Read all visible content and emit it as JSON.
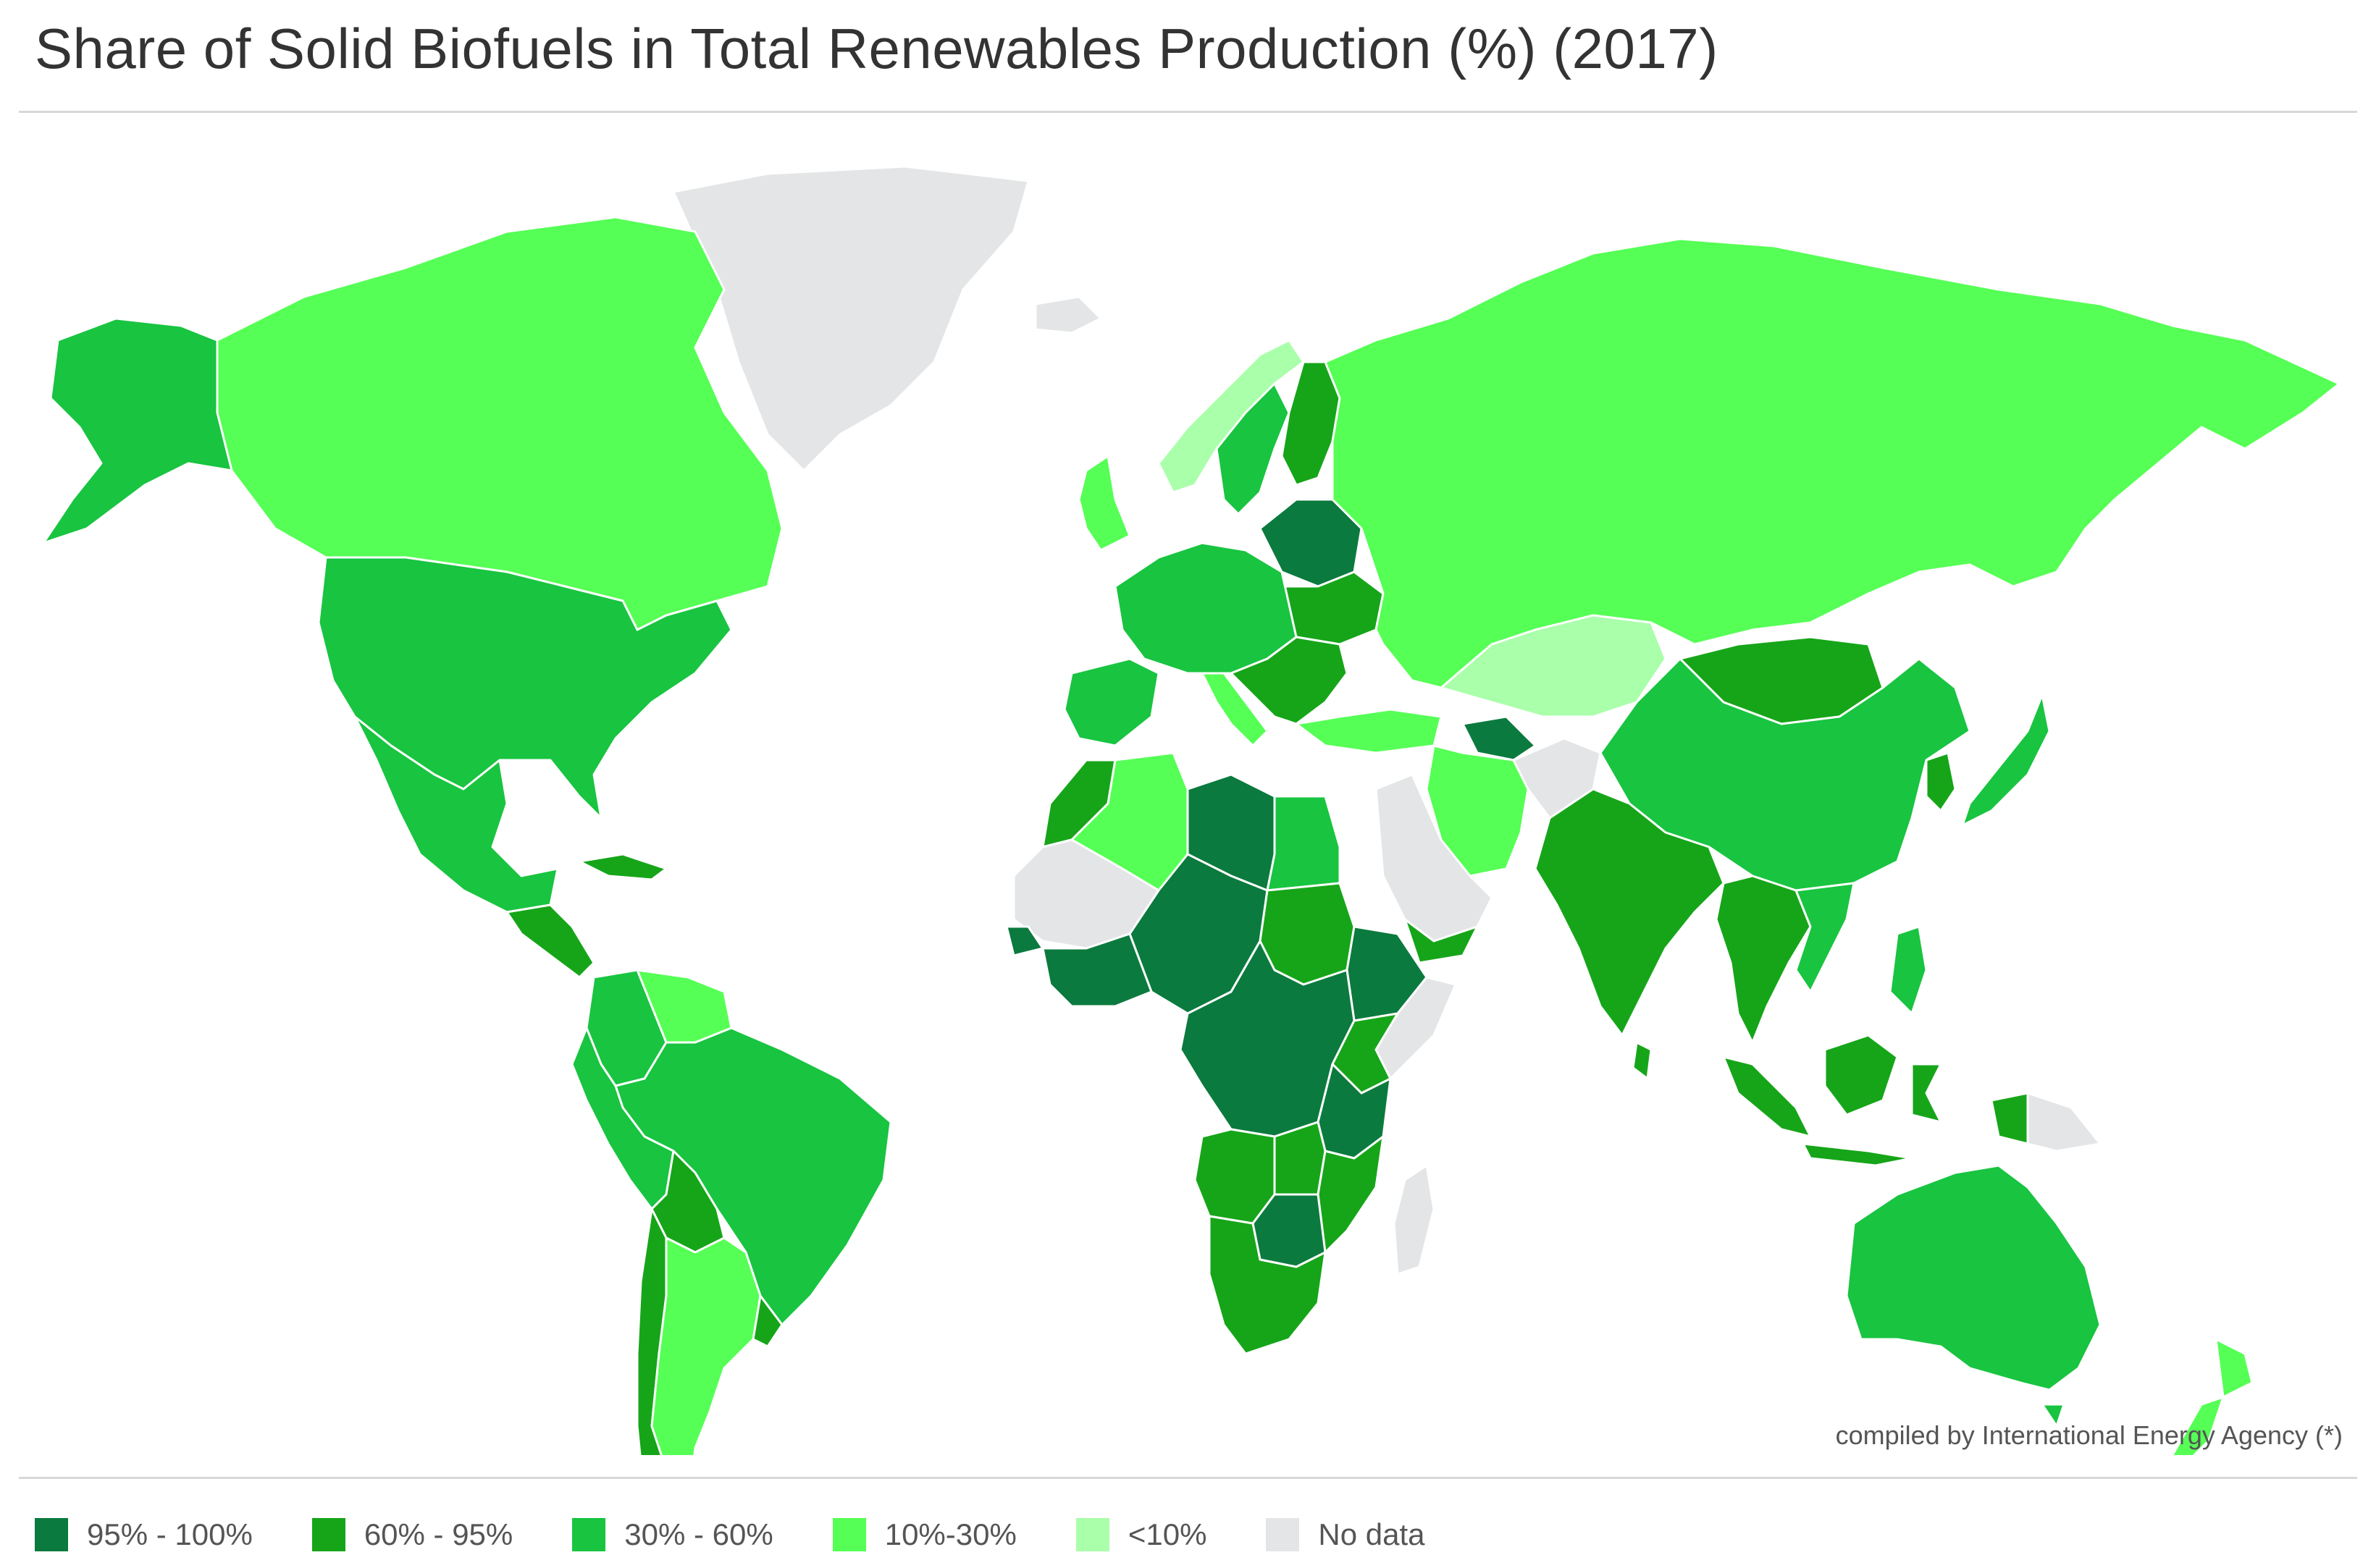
{
  "title": "Share of Solid Biofuels in Total Renewables Production (%) (2017)",
  "credit": "compiled by International Energy Agency (*)",
  "legend": [
    {
      "label": "95% - 100%",
      "color": "#0b7a3e"
    },
    {
      "label": "60% - 95%",
      "color": "#16a519"
    },
    {
      "label": "30% - 60%",
      "color": "#18c440"
    },
    {
      "label": "10%-30%",
      "color": "#55ff55"
    },
    {
      "label": "<10%",
      "color": "#aaffaa"
    },
    {
      "label": "No data",
      "color": "#e3e5e6"
    }
  ],
  "regions": [
    {
      "id": "greenland",
      "cls": "No data",
      "color": "#e3e5e6"
    },
    {
      "id": "canada",
      "cls": "10%-30%",
      "color": "#55ff55"
    },
    {
      "id": "alaska",
      "cls": "30% - 60%",
      "color": "#18c440"
    },
    {
      "id": "usa",
      "cls": "30% - 60%",
      "color": "#18c440"
    },
    {
      "id": "mexico",
      "cls": "30% - 60%",
      "color": "#18c440"
    },
    {
      "id": "central-america",
      "cls": "60% - 95%",
      "color": "#16a519"
    },
    {
      "id": "cuba",
      "cls": "60% - 95%",
      "color": "#16a519"
    },
    {
      "id": "colombia",
      "cls": "30% - 60%",
      "color": "#18c440"
    },
    {
      "id": "venezuela",
      "cls": "10%-30%",
      "color": "#55ff55"
    },
    {
      "id": "brazil",
      "cls": "30% - 60%",
      "color": "#18c440"
    },
    {
      "id": "peru",
      "cls": "30% - 60%",
      "color": "#18c440"
    },
    {
      "id": "bolivia",
      "cls": "60% - 95%",
      "color": "#16a519"
    },
    {
      "id": "chile",
      "cls": "60% - 95%",
      "color": "#16a519"
    },
    {
      "id": "argentina",
      "cls": "10%-30%",
      "color": "#55ff55"
    },
    {
      "id": "uruguay",
      "cls": "60% - 95%",
      "color": "#16a519"
    },
    {
      "id": "iceland",
      "cls": "No data",
      "color": "#e3e5e6"
    },
    {
      "id": "uk",
      "cls": "10%-30%",
      "color": "#55ff55"
    },
    {
      "id": "norway",
      "cls": "<10%",
      "color": "#aaffaa"
    },
    {
      "id": "sweden",
      "cls": "30% - 60%",
      "color": "#18c440"
    },
    {
      "id": "finland",
      "cls": "60% - 95%",
      "color": "#16a519"
    },
    {
      "id": "baltics-belarus",
      "cls": "95% - 100%",
      "color": "#0b7a3e"
    },
    {
      "id": "ukraine",
      "cls": "60% - 95%",
      "color": "#16a519"
    },
    {
      "id": "western-europe",
      "cls": "30% - 60%",
      "color": "#18c440"
    },
    {
      "id": "iberia",
      "cls": "30% - 60%",
      "color": "#18c440"
    },
    {
      "id": "italy",
      "cls": "10%-30%",
      "color": "#55ff55"
    },
    {
      "id": "balkans",
      "cls": "60% - 95%",
      "color": "#16a519"
    },
    {
      "id": "turkey",
      "cls": "10%-30%",
      "color": "#55ff55"
    },
    {
      "id": "russia",
      "cls": "10%-30%",
      "color": "#55ff55"
    },
    {
      "id": "kazakhstan",
      "cls": "<10%",
      "color": "#aaffaa"
    },
    {
      "id": "turkmenistan",
      "cls": "95% - 100%",
      "color": "#0b7a3e"
    },
    {
      "id": "iran",
      "cls": "10%-30%",
      "color": "#55ff55"
    },
    {
      "id": "afghanistan",
      "cls": "No data",
      "color": "#e3e5e6"
    },
    {
      "id": "mongolia",
      "cls": "60% - 95%",
      "color": "#16a519"
    },
    {
      "id": "china",
      "cls": "30% - 60%",
      "color": "#18c440"
    },
    {
      "id": "korea",
      "cls": "60% - 95%",
      "color": "#16a519"
    },
    {
      "id": "japan",
      "cls": "30% - 60%",
      "color": "#18c440"
    },
    {
      "id": "india",
      "cls": "60% - 95%",
      "color": "#16a519"
    },
    {
      "id": "sri-lanka",
      "cls": "60% - 95%",
      "color": "#16a519"
    },
    {
      "id": "southeast-asia",
      "cls": "60% - 95%",
      "color": "#16a519"
    },
    {
      "id": "vietnam",
      "cls": "30% - 60%",
      "color": "#18c440"
    },
    {
      "id": "philippines",
      "cls": "30% - 60%",
      "color": "#18c440"
    },
    {
      "id": "sumatra",
      "cls": "60% - 95%",
      "color": "#16a519"
    },
    {
      "id": "java",
      "cls": "60% - 95%",
      "color": "#16a519"
    },
    {
      "id": "borneo",
      "cls": "60% - 95%",
      "color": "#16a519"
    },
    {
      "id": "sulawesi",
      "cls": "60% - 95%",
      "color": "#16a519"
    },
    {
      "id": "new-guinea-west",
      "cls": "60% - 95%",
      "color": "#16a519"
    },
    {
      "id": "png",
      "cls": "No data",
      "color": "#e3e5e6"
    },
    {
      "id": "australia",
      "cls": "30% - 60%",
      "color": "#18c440"
    },
    {
      "id": "tasmania",
      "cls": "30% - 60%",
      "color": "#18c440"
    },
    {
      "id": "nz-north",
      "cls": "10%-30%",
      "color": "#55ff55"
    },
    {
      "id": "nz-south",
      "cls": "10%-30%",
      "color": "#55ff55"
    },
    {
      "id": "arabia",
      "cls": "No data",
      "color": "#e3e5e6"
    },
    {
      "id": "yemen",
      "cls": "60% - 95%",
      "color": "#16a519"
    },
    {
      "id": "morocco",
      "cls": "60% - 95%",
      "color": "#16a519"
    },
    {
      "id": "algeria",
      "cls": "10%-30%",
      "color": "#55ff55"
    },
    {
      "id": "libya",
      "cls": "95% - 100%",
      "color": "#0b7a3e"
    },
    {
      "id": "egypt",
      "cls": "30% - 60%",
      "color": "#18c440"
    },
    {
      "id": "sahel-west",
      "cls": "No data",
      "color": "#e3e5e6"
    },
    {
      "id": "senegal",
      "cls": "95% - 100%",
      "color": "#0b7a3e"
    },
    {
      "id": "niger-nigeria",
      "cls": "95% - 100%",
      "color": "#0b7a3e"
    },
    {
      "id": "west-africa-coast",
      "cls": "95% - 100%",
      "color": "#0b7a3e"
    },
    {
      "id": "sudan",
      "cls": "60% - 95%",
      "color": "#16a519"
    },
    {
      "id": "ethiopia",
      "cls": "95% - 100%",
      "color": "#0b7a3e"
    },
    {
      "id": "somalia",
      "cls": "No data",
      "color": "#e3e5e6"
    },
    {
      "id": "central-africa",
      "cls": "95% - 100%",
      "color": "#0b7a3e"
    },
    {
      "id": "kenya",
      "cls": "60% - 95%",
      "color": "#16a519"
    },
    {
      "id": "tanzania",
      "cls": "95% - 100%",
      "color": "#0b7a3e"
    },
    {
      "id": "angola",
      "cls": "60% - 95%",
      "color": "#16a519"
    },
    {
      "id": "zambia",
      "cls": "60% - 95%",
      "color": "#16a519"
    },
    {
      "id": "mozambique",
      "cls": "60% - 95%",
      "color": "#16a519"
    },
    {
      "id": "zimbabwe",
      "cls": "95% - 100%",
      "color": "#0b7a3e"
    },
    {
      "id": "southern-africa",
      "cls": "60% - 95%",
      "color": "#16a519"
    },
    {
      "id": "madagascar",
      "cls": "No data",
      "color": "#e3e5e6"
    }
  ]
}
